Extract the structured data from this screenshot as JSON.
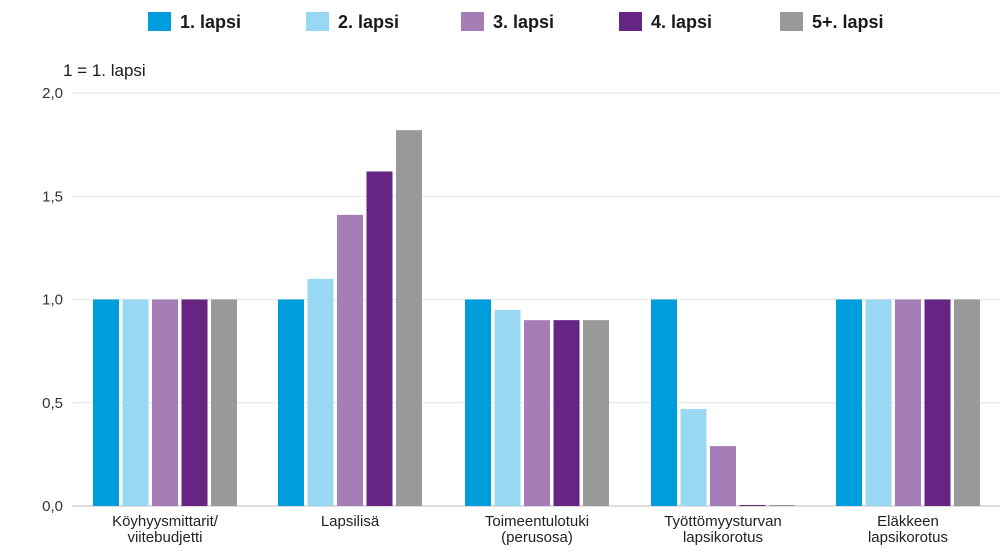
{
  "chart_data": {
    "type": "bar",
    "title": "",
    "ylabel": "1 = 1. lapsi",
    "xlabel": "",
    "ylim": [
      0,
      2.0
    ],
    "yticks": [
      "0,0",
      "0,5",
      "1,0",
      "1,5",
      "2,0"
    ],
    "grid": true,
    "legend_position": "top",
    "categories": [
      [
        "Köyhyysmittarit/",
        "viitebudjetti"
      ],
      [
        "Lapsilisä"
      ],
      [
        "Toimeentulotuki",
        "(perusosa)"
      ],
      [
        "Työttömyysturvan",
        "lapsikorotus"
      ],
      [
        "Eläkkeen",
        "lapsikorotus"
      ]
    ],
    "series": [
      {
        "name": "1. lapsi",
        "color": "#009ddc",
        "values": [
          1.0,
          1.0,
          1.0,
          1.0,
          1.0
        ]
      },
      {
        "name": "2. lapsi",
        "color": "#99d8f2",
        "values": [
          1.0,
          1.1,
          0.95,
          0.47,
          1.0
        ]
      },
      {
        "name": "3. lapsi",
        "color": "#a57eb8",
        "values": [
          1.0,
          1.41,
          0.9,
          0.29,
          1.0
        ]
      },
      {
        "name": "4. lapsi",
        "color": "#662483",
        "values": [
          1.0,
          1.62,
          0.9,
          0.0,
          1.0
        ]
      },
      {
        "name": "5+. lapsi",
        "color": "#999999",
        "values": [
          1.0,
          1.82,
          0.9,
          0.0,
          1.0
        ]
      }
    ]
  }
}
